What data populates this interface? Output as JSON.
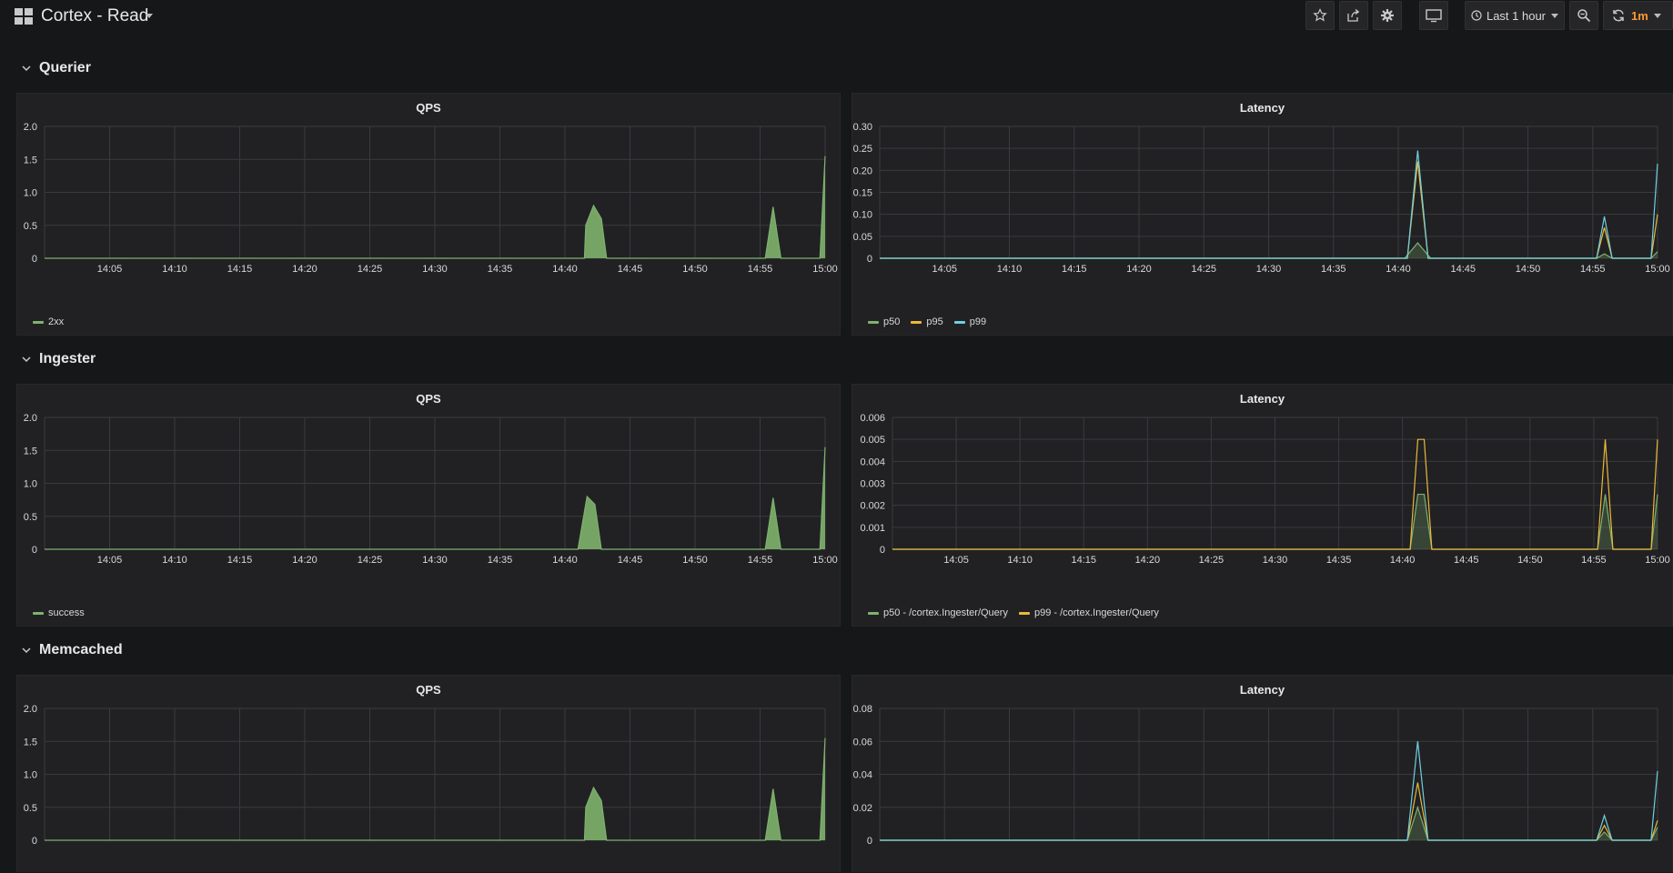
{
  "topbar": {
    "title": "Cortex - Read",
    "app_icon": "dashboard-grid-icon",
    "buttons": [
      "star-icon",
      "share-icon",
      "gear-icon",
      "tv-icon"
    ],
    "time_picker_label": "Last 1 hour",
    "zoom_icon": "zoom-out-icon",
    "refresh_icon": "refresh-icon",
    "refresh_interval": "1m"
  },
  "colors": {
    "background": "#161719",
    "panel": "#212124",
    "grid": "#3a3b3e",
    "text": "#d8d9da",
    "green": "#7eb26d",
    "yellow": "#eab839",
    "cyan": "#6ed0e0",
    "accent": "#ff9830"
  },
  "rows": [
    {
      "title": "Querier",
      "panels": [
        {
          "title": "QPS",
          "legend": [
            {
              "name": "2xx",
              "color": "#7eb26d"
            }
          ],
          "chart_data": {
            "type": "area",
            "x_ticks": [
              "14:05",
              "14:10",
              "14:15",
              "14:20",
              "14:25",
              "14:30",
              "14:35",
              "14:40",
              "14:45",
              "14:50",
              "14:55",
              "15:00"
            ],
            "y_ticks": [
              "2.0",
              "1.5",
              "1.0",
              "0.5",
              "0"
            ],
            "xlim": [
              0,
              60
            ],
            "ylim": [
              0,
              2.0
            ],
            "series": [
              {
                "name": "2xx",
                "color": "#7eb26d",
                "fill": true,
                "points": [
                  [
                    0,
                    0
                  ],
                  [
                    41.5,
                    0
                  ],
                  [
                    41.6,
                    0.5
                  ],
                  [
                    42.2,
                    0.8
                  ],
                  [
                    42.8,
                    0.6
                  ],
                  [
                    43.2,
                    0
                  ],
                  [
                    55.4,
                    0
                  ],
                  [
                    56,
                    0.78
                  ],
                  [
                    56.6,
                    0
                  ],
                  [
                    59.6,
                    0
                  ],
                  [
                    60,
                    1.55
                  ]
                ]
              }
            ]
          }
        },
        {
          "title": "Latency",
          "legend": [
            {
              "name": "p50",
              "color": "#7eb26d"
            },
            {
              "name": "p95",
              "color": "#eab839"
            },
            {
              "name": "p99",
              "color": "#6ed0e0"
            }
          ],
          "chart_data": {
            "type": "line",
            "x_ticks": [
              "14:05",
              "14:10",
              "14:15",
              "14:20",
              "14:25",
              "14:30",
              "14:35",
              "14:40",
              "14:45",
              "14:50",
              "14:55",
              "15:00"
            ],
            "y_ticks": [
              "0.30",
              "0.25",
              "0.20",
              "0.15",
              "0.10",
              "0.05",
              "0"
            ],
            "xlim": [
              0,
              60
            ],
            "ylim": [
              0,
              0.3
            ],
            "series": [
              {
                "name": "p50",
                "color": "#7eb26d",
                "fill": true,
                "points": [
                  [
                    0,
                    0
                  ],
                  [
                    40.5,
                    0
                  ],
                  [
                    41.5,
                    0.035
                  ],
                  [
                    42.5,
                    0
                  ],
                  [
                    55.3,
                    0
                  ],
                  [
                    55.9,
                    0.01
                  ],
                  [
                    56.5,
                    0
                  ],
                  [
                    59.5,
                    0
                  ],
                  [
                    60,
                    0.015
                  ]
                ]
              },
              {
                "name": "p95",
                "color": "#eab839",
                "fill": false,
                "points": [
                  [
                    0,
                    0
                  ],
                  [
                    40.7,
                    0
                  ],
                  [
                    41.5,
                    0.22
                  ],
                  [
                    42.3,
                    0
                  ],
                  [
                    55.3,
                    0
                  ],
                  [
                    55.9,
                    0.07
                  ],
                  [
                    56.5,
                    0
                  ],
                  [
                    59.5,
                    0
                  ],
                  [
                    60,
                    0.1
                  ]
                ]
              },
              {
                "name": "p99",
                "color": "#6ed0e0",
                "fill": false,
                "points": [
                  [
                    0,
                    0
                  ],
                  [
                    40.7,
                    0
                  ],
                  [
                    41.5,
                    0.245
                  ],
                  [
                    42.3,
                    0
                  ],
                  [
                    55.3,
                    0
                  ],
                  [
                    55.9,
                    0.095
                  ],
                  [
                    56.5,
                    0
                  ],
                  [
                    59.5,
                    0
                  ],
                  [
                    60,
                    0.215
                  ]
                ]
              }
            ]
          }
        }
      ]
    },
    {
      "title": "Ingester",
      "panels": [
        {
          "title": "QPS",
          "legend": [
            {
              "name": "success",
              "color": "#7eb26d"
            }
          ],
          "chart_data": {
            "type": "area",
            "x_ticks": [
              "14:05",
              "14:10",
              "14:15",
              "14:20",
              "14:25",
              "14:30",
              "14:35",
              "14:40",
              "14:45",
              "14:50",
              "14:55",
              "15:00"
            ],
            "y_ticks": [
              "2.0",
              "1.5",
              "1.0",
              "0.5",
              "0"
            ],
            "xlim": [
              0,
              60
            ],
            "ylim": [
              0,
              2.0
            ],
            "series": [
              {
                "name": "success",
                "color": "#7eb26d",
                "fill": true,
                "points": [
                  [
                    0,
                    0
                  ],
                  [
                    41,
                    0
                  ],
                  [
                    41.7,
                    0.8
                  ],
                  [
                    42.3,
                    0.68
                  ],
                  [
                    42.8,
                    0
                  ],
                  [
                    55.4,
                    0
                  ],
                  [
                    56,
                    0.78
                  ],
                  [
                    56.6,
                    0
                  ],
                  [
                    59.6,
                    0
                  ],
                  [
                    60,
                    1.55
                  ]
                ]
              }
            ]
          }
        },
        {
          "title": "Latency",
          "legend": [
            {
              "name": "p50 - /cortex.Ingester/Query",
              "color": "#7eb26d"
            },
            {
              "name": "p99 - /cortex.Ingester/Query",
              "color": "#eab839"
            }
          ],
          "chart_data": {
            "type": "line",
            "x_ticks": [
              "14:05",
              "14:10",
              "14:15",
              "14:20",
              "14:25",
              "14:30",
              "14:35",
              "14:40",
              "14:45",
              "14:50",
              "14:55",
              "15:00"
            ],
            "y_ticks": [
              "0.006",
              "0.005",
              "0.004",
              "0.003",
              "0.002",
              "0.001",
              "0"
            ],
            "xlim": [
              0,
              60
            ],
            "ylim": [
              0,
              0.006
            ],
            "series": [
              {
                "name": "p50 - /cortex.Ingester/Query",
                "color": "#7eb26d",
                "fill": true,
                "points": [
                  [
                    0,
                    0
                  ],
                  [
                    40.6,
                    0
                  ],
                  [
                    41.2,
                    0.0025
                  ],
                  [
                    41.7,
                    0.0025
                  ],
                  [
                    42.3,
                    0
                  ],
                  [
                    55.3,
                    0
                  ],
                  [
                    55.9,
                    0.0025
                  ],
                  [
                    56.5,
                    0
                  ],
                  [
                    59.5,
                    0
                  ],
                  [
                    60,
                    0.0025
                  ]
                ]
              },
              {
                "name": "p99 - /cortex.Ingester/Query",
                "color": "#eab839",
                "fill": false,
                "points": [
                  [
                    0,
                    0
                  ],
                  [
                    40.6,
                    0
                  ],
                  [
                    41.2,
                    0.005
                  ],
                  [
                    41.7,
                    0.005
                  ],
                  [
                    42.3,
                    0
                  ],
                  [
                    55.3,
                    0
                  ],
                  [
                    55.9,
                    0.005
                  ],
                  [
                    56.5,
                    0
                  ],
                  [
                    59.5,
                    0
                  ],
                  [
                    60,
                    0.005
                  ]
                ]
              }
            ]
          }
        }
      ]
    },
    {
      "title": "Memcached",
      "panels": [
        {
          "title": "QPS",
          "legend": [],
          "chart_data": {
            "type": "area",
            "x_ticks": [],
            "y_ticks": [
              "2.0",
              "1.5",
              "1.0",
              "0.5",
              "0"
            ],
            "xlim": [
              0,
              60
            ],
            "ylim": [
              0,
              2.0
            ],
            "series": [
              {
                "name": "",
                "color": "#7eb26d",
                "fill": true,
                "points": [
                  [
                    0,
                    0
                  ],
                  [
                    41.5,
                    0
                  ],
                  [
                    41.6,
                    0.5
                  ],
                  [
                    42.2,
                    0.8
                  ],
                  [
                    42.8,
                    0.6
                  ],
                  [
                    43.2,
                    0
                  ],
                  [
                    55.4,
                    0
                  ],
                  [
                    56,
                    0.78
                  ],
                  [
                    56.6,
                    0
                  ],
                  [
                    59.6,
                    0
                  ],
                  [
                    60,
                    1.55
                  ]
                ]
              }
            ]
          }
        },
        {
          "title": "Latency",
          "legend": [],
          "chart_data": {
            "type": "line",
            "x_ticks": [],
            "y_ticks": [
              "0.08",
              "0.06",
              "0.04",
              "0.02",
              "0"
            ],
            "xlim": [
              0,
              60
            ],
            "ylim": [
              0,
              0.08
            ],
            "series": [
              {
                "name": "",
                "color": "#7eb26d",
                "fill": true,
                "points": [
                  [
                    0,
                    0
                  ],
                  [
                    40.7,
                    0
                  ],
                  [
                    41.5,
                    0.02
                  ],
                  [
                    42.3,
                    0
                  ],
                  [
                    55.3,
                    0
                  ],
                  [
                    55.9,
                    0.005
                  ],
                  [
                    56.5,
                    0
                  ],
                  [
                    59.5,
                    0
                  ],
                  [
                    60,
                    0.008
                  ]
                ]
              },
              {
                "name": "",
                "color": "#eab839",
                "fill": false,
                "points": [
                  [
                    0,
                    0
                  ],
                  [
                    40.7,
                    0
                  ],
                  [
                    41.5,
                    0.035
                  ],
                  [
                    42.3,
                    0
                  ],
                  [
                    55.3,
                    0
                  ],
                  [
                    55.9,
                    0.009
                  ],
                  [
                    56.5,
                    0
                  ],
                  [
                    59.5,
                    0
                  ],
                  [
                    60,
                    0.012
                  ]
                ]
              },
              {
                "name": "",
                "color": "#6ed0e0",
                "fill": false,
                "points": [
                  [
                    0,
                    0
                  ],
                  [
                    40.7,
                    0
                  ],
                  [
                    41.5,
                    0.06
                  ],
                  [
                    42.3,
                    0
                  ],
                  [
                    55.3,
                    0
                  ],
                  [
                    55.9,
                    0.015
                  ],
                  [
                    56.5,
                    0
                  ],
                  [
                    59.5,
                    0
                  ],
                  [
                    60,
                    0.042
                  ]
                ]
              }
            ]
          }
        }
      ]
    }
  ]
}
